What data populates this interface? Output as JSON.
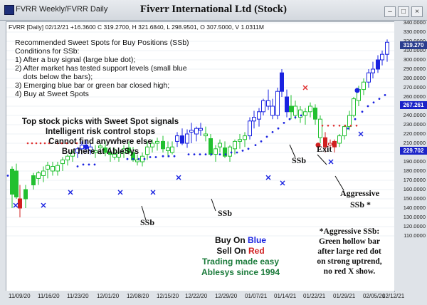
{
  "window": {
    "tab_label": "FVRR Weekly/FVRR Daily",
    "title": "Fiverr International Ltd (Stock)"
  },
  "ohlc_line": "FVRR [Daily] 02/12/21 +16.3600 C 319.2700, H 321.6840, L 298.9501, O 307.5000, V 1.0311M",
  "description": {
    "lines": [
      "Recommended Sweet Spots for Buy Positions (SSb)",
      "Conditions for SSb:",
      "1) After a buy signal (large blue dot);",
      "2) After market has tested support levels (small blue",
      "    dots below the bars);",
      "3) Emerging blue bar or green bar closed high;",
      "4) Buy at Sweet Spots"
    ]
  },
  "promo": {
    "lines": [
      "Top stock picks with Sweet Spot signals",
      "Intelligent risk control stops",
      "Cannot find anywhere else",
      "But here at AbleSys"
    ]
  },
  "buy_sell": {
    "buy_prefix": "Buy On ",
    "buy_word": "Blue",
    "sell_prefix": "Sell On ",
    "sell_word": "Red",
    "tag1": "Trading made easy",
    "tag2": "Ablesys since 1994"
  },
  "note": {
    "lines": [
      "*Aggressive SSb:",
      "Green hollow bar",
      "after large red dot",
      "on strong uptrend,",
      "no red X show."
    ]
  },
  "annotations": {
    "ssb": "SSb",
    "exit": "Exit",
    "aggressive1": "Aggressive",
    "aggressive2": "SSb *"
  },
  "price_axis": {
    "labels": [
      "340.0000",
      "330.0000",
      "320.0000",
      "310.0000",
      "300.0000",
      "290.0000",
      "280.0000",
      "270.0000",
      "260.0000",
      "250.0000",
      "240.0000",
      "230.0000",
      "220.0000",
      "210.0000",
      "200.0000",
      "190.0000",
      "180.0000",
      "170.0000",
      "160.0000",
      "150.0000",
      "140.0000",
      "130.0000",
      "120.0000",
      "110.0000"
    ],
    "tag_last": "319.270",
    "tag_mid": "267.261",
    "tag_low": "229.702",
    "tag_last_color": "#2a3d8f",
    "tag_mid_color": "#1a23c8",
    "tag_low_color": "#1a23c8"
  },
  "date_axis": {
    "labels": [
      "11/09/20",
      "11/16/20",
      "11/23/20",
      "12/01/20",
      "12/08/20",
      "12/15/20",
      "12/22/20",
      "12/29/20",
      "01/07/21",
      "01/14/21",
      "01/22/21",
      "01/29/21",
      "02/05/21",
      "02/12/21"
    ]
  },
  "colors": {
    "blue_bar": "#1a23e0",
    "green_bar": "#22c030",
    "red_bar": "#d02020",
    "stop_red": "#e03030",
    "support_blue": "#1a23e0"
  }
}
